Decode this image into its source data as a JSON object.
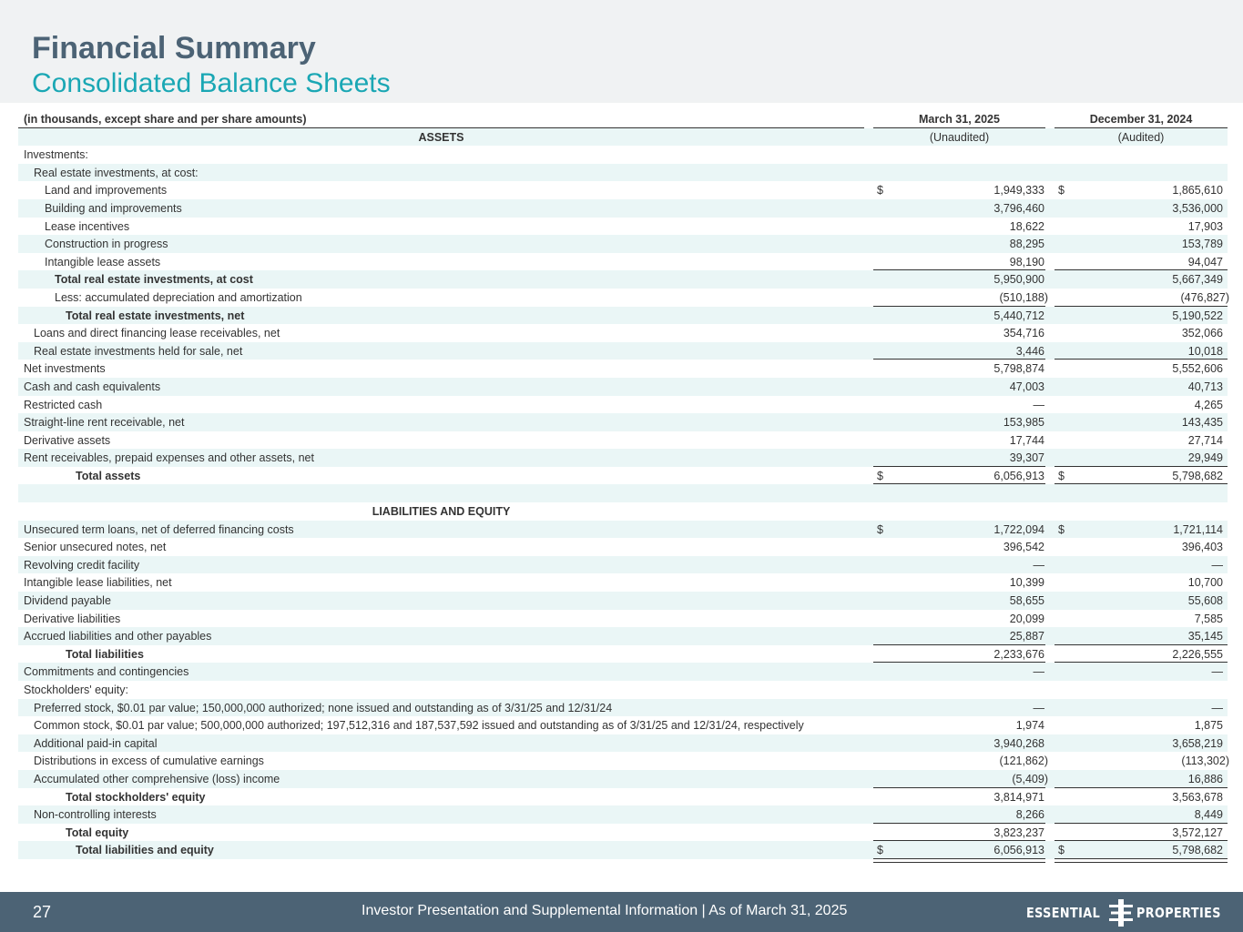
{
  "header": {
    "title": "Financial Summary",
    "subtitle": "Consolidated Balance Sheets"
  },
  "table": {
    "units_note": "(in thousands, except share and per share amounts)",
    "col1_header": "March 31, 2025",
    "col2_header": "December 31, 2024",
    "assets_heading": "ASSETS",
    "col1_status": "(Unaudited)",
    "col2_status": "(Audited)",
    "liabilities_heading": "LIABILITIES AND EQUITY",
    "currency": "$",
    "rows": [
      {
        "label": "Investments:",
        "v1": "",
        "v2": ""
      },
      {
        "label": "Real estate investments, at cost:",
        "v1": "",
        "v2": ""
      },
      {
        "label": "Land and improvements",
        "v1": "1,949,333",
        "v2": "1,865,610"
      },
      {
        "label": "Building and improvements",
        "v1": "3,796,460",
        "v2": "3,536,000"
      },
      {
        "label": "Lease incentives",
        "v1": "18,622",
        "v2": "17,903"
      },
      {
        "label": "Construction in progress",
        "v1": "88,295",
        "v2": "153,789"
      },
      {
        "label": "Intangible lease assets",
        "v1": "98,190",
        "v2": "94,047"
      },
      {
        "label": "Total real estate investments, at cost",
        "v1": "5,950,900",
        "v2": "5,667,349"
      },
      {
        "label": "Less: accumulated depreciation and amortization",
        "v1": "(510,188)",
        "v2": "(476,827)"
      },
      {
        "label": "Total real estate investments, net",
        "v1": "5,440,712",
        "v2": "5,190,522"
      },
      {
        "label": "Loans and direct financing lease receivables, net",
        "v1": "354,716",
        "v2": "352,066"
      },
      {
        "label": "Real estate investments held for sale, net",
        "v1": "3,446",
        "v2": "10,018"
      },
      {
        "label": "Net investments",
        "v1": "5,798,874",
        "v2": "5,552,606"
      },
      {
        "label": "Cash and cash equivalents",
        "v1": "47,003",
        "v2": "40,713"
      },
      {
        "label": "Restricted cash",
        "v1": "—",
        "v2": "4,265"
      },
      {
        "label": "Straight-line rent receivable, net",
        "v1": "153,985",
        "v2": "143,435"
      },
      {
        "label": "Derivative assets",
        "v1": "17,744",
        "v2": "27,714"
      },
      {
        "label": "Rent receivables, prepaid expenses and other assets, net",
        "v1": "39,307",
        "v2": "29,949"
      },
      {
        "label": "Total assets",
        "v1": "6,056,913",
        "v2": "5,798,682"
      },
      {
        "label": "",
        "v1": "",
        "v2": ""
      },
      {
        "label": "",
        "v1": "",
        "v2": ""
      },
      {
        "label": "Unsecured term loans, net of deferred financing costs",
        "v1": "1,722,094",
        "v2": "1,721,114"
      },
      {
        "label": "Senior unsecured notes, net",
        "v1": "396,542",
        "v2": "396,403"
      },
      {
        "label": "Revolving credit facility",
        "v1": "—",
        "v2": "—"
      },
      {
        "label": "Intangible lease liabilities, net",
        "v1": "10,399",
        "v2": "10,700"
      },
      {
        "label": "Dividend payable",
        "v1": "58,655",
        "v2": "55,608"
      },
      {
        "label": "Derivative liabilities",
        "v1": "20,099",
        "v2": "7,585"
      },
      {
        "label": "Accrued liabilities and other payables",
        "v1": "25,887",
        "v2": "35,145"
      },
      {
        "label": "Total liabilities",
        "v1": "2,233,676",
        "v2": "2,226,555"
      },
      {
        "label": "Commitments and contingencies",
        "v1": "—",
        "v2": "—"
      },
      {
        "label": "Stockholders' equity:",
        "v1": "",
        "v2": ""
      },
      {
        "label": "Preferred stock, $0.01 par value; 150,000,000  authorized; none issued and outstanding as of 3/31/25 and 12/31/24",
        "v1": "—",
        "v2": "—"
      },
      {
        "label": "Common stock, $0.01 par value; 500,000,000 authorized; 197,512,316 and 187,537,592 issued and outstanding as of 3/31/25 and 12/31/24, respectively",
        "v1": "1,974",
        "v2": "1,875"
      },
      {
        "label": "Additional paid-in capital",
        "v1": "3,940,268",
        "v2": "3,658,219"
      },
      {
        "label": "Distributions in excess of cumulative earnings",
        "v1": "(121,862)",
        "v2": "(113,302)"
      },
      {
        "label": "Accumulated other comprehensive (loss) income",
        "v1": "(5,409)",
        "v2": "16,886"
      },
      {
        "label": "Total stockholders' equity",
        "v1": "3,814,971",
        "v2": "3,563,678"
      },
      {
        "label": "Non-controlling interests",
        "v1": "8,266",
        "v2": "8,449"
      },
      {
        "label": "Total equity",
        "v1": "3,823,237",
        "v2": "3,572,127"
      },
      {
        "label": "Total liabilities and equity",
        "v1": "6,056,913",
        "v2": "5,798,682"
      }
    ]
  },
  "footer": {
    "page_number": "27",
    "text": "Investor Presentation and Supplemental Information |  As of March 31, 2025",
    "logo_left": "ESSENTIAL",
    "logo_right": "PROPERTIES"
  },
  "colors": {
    "title": "#4c6375",
    "subtitle": "#1aa7b4",
    "row_shade": "#eaf6f6",
    "footer_bg": "#4c6375"
  }
}
